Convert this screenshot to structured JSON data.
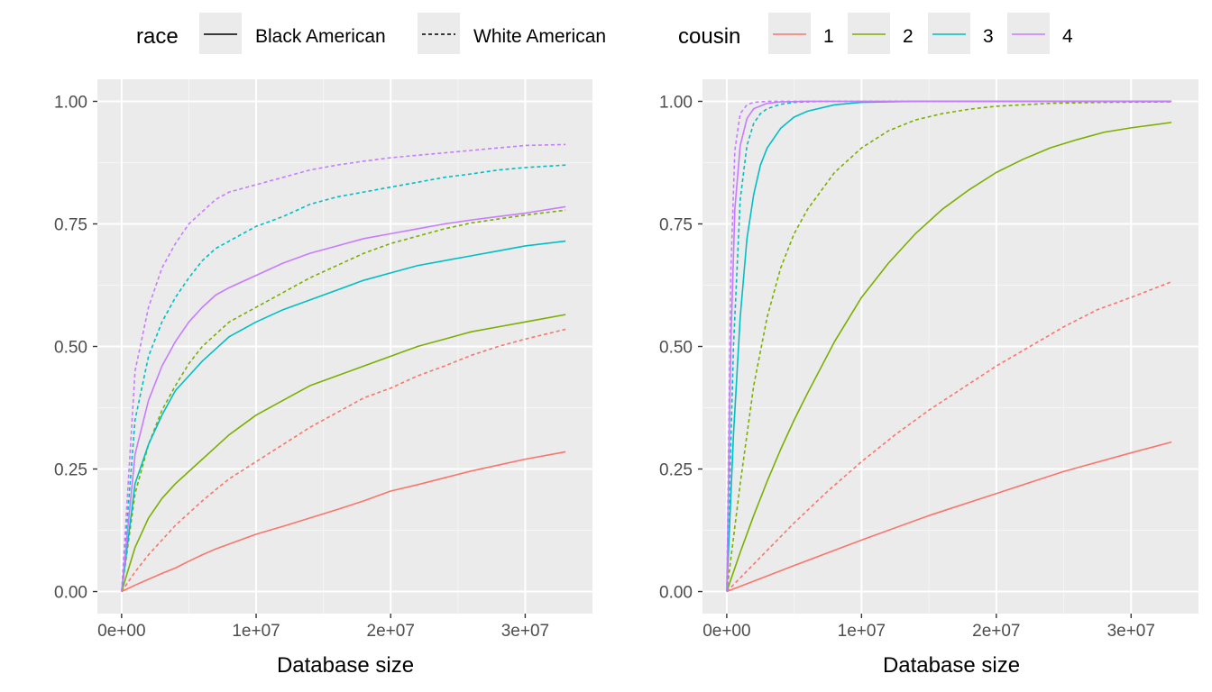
{
  "legend": {
    "race": {
      "title": "race",
      "entries": [
        {
          "label": "Black American",
          "linetype": "solid"
        },
        {
          "label": "White American",
          "linetype": "dashed"
        }
      ]
    },
    "cousin": {
      "title": "cousin",
      "entries": [
        {
          "label": "1",
          "color": "#F8766D"
        },
        {
          "label": "2",
          "color": "#7CAE00"
        },
        {
          "label": "3",
          "color": "#00BFC4"
        },
        {
          "label": "4",
          "color": "#C77CFF"
        }
      ]
    }
  },
  "chart_data": [
    {
      "type": "line",
      "panel": "left",
      "title": "",
      "xlabel": "Database size",
      "ylabel": "",
      "xlim": [
        -1800000,
        35000000
      ],
      "ylim": [
        -0.045,
        1.045
      ],
      "xticks": [
        0,
        10000000,
        20000000,
        30000000
      ],
      "xtick_labels": [
        "0e+00",
        "1e+07",
        "2e+07",
        "3e+07"
      ],
      "yticks": [
        0,
        0.25,
        0.5,
        0.75,
        1.0
      ],
      "ytick_labels": [
        "0.00",
        "0.25",
        "0.50",
        "0.75",
        "1.00"
      ],
      "x": [
        0,
        1000000,
        2000000,
        3000000,
        4000000,
        5000000,
        6000000,
        7000000,
        8000000,
        10000000,
        12000000,
        14000000,
        16000000,
        18000000,
        20000000,
        22000000,
        24000000,
        26000000,
        28000000,
        30000000,
        33000000
      ],
      "series": [
        {
          "name": "cousin 1 - Black American",
          "cousin": "1",
          "race": "Black American",
          "color": "#F8766D",
          "dash": "solid",
          "values": [
            0,
            0.013,
            0.025,
            0.037,
            0.048,
            0.062,
            0.075,
            0.087,
            0.097,
            0.117,
            0.133,
            0.15,
            0.167,
            0.185,
            0.205,
            0.218,
            0.232,
            0.246,
            0.258,
            0.27,
            0.285
          ]
        },
        {
          "name": "cousin 1 - White American",
          "cousin": "1",
          "race": "White American",
          "color": "#F8766D",
          "dash": "dashed",
          "values": [
            0,
            0.04,
            0.075,
            0.105,
            0.135,
            0.16,
            0.185,
            0.208,
            0.23,
            0.265,
            0.3,
            0.335,
            0.365,
            0.395,
            0.415,
            0.44,
            0.46,
            0.482,
            0.5,
            0.515,
            0.535
          ]
        },
        {
          "name": "cousin 2 - Black American",
          "cousin": "2",
          "race": "Black American",
          "color": "#7CAE00",
          "dash": "solid",
          "values": [
            0,
            0.09,
            0.15,
            0.19,
            0.22,
            0.245,
            0.27,
            0.295,
            0.32,
            0.36,
            0.39,
            0.42,
            0.44,
            0.46,
            0.48,
            0.5,
            0.515,
            0.53,
            0.54,
            0.55,
            0.565
          ]
        },
        {
          "name": "cousin 2 - White American",
          "cousin": "2",
          "race": "White American",
          "color": "#7CAE00",
          "dash": "dashed",
          "values": [
            0,
            0.2,
            0.3,
            0.37,
            0.42,
            0.465,
            0.5,
            0.525,
            0.55,
            0.58,
            0.61,
            0.64,
            0.665,
            0.69,
            0.71,
            0.725,
            0.74,
            0.752,
            0.76,
            0.768,
            0.778
          ]
        },
        {
          "name": "cousin 3 - Black American",
          "cousin": "3",
          "race": "Black American",
          "color": "#00BFC4",
          "dash": "solid",
          "values": [
            0,
            0.22,
            0.3,
            0.36,
            0.41,
            0.44,
            0.47,
            0.495,
            0.52,
            0.55,
            0.575,
            0.595,
            0.615,
            0.635,
            0.65,
            0.665,
            0.675,
            0.685,
            0.695,
            0.705,
            0.715
          ]
        },
        {
          "name": "cousin 3 - White American",
          "cousin": "3",
          "race": "White American",
          "color": "#00BFC4",
          "dash": "dashed",
          "values": [
            0,
            0.35,
            0.48,
            0.55,
            0.6,
            0.64,
            0.675,
            0.7,
            0.715,
            0.745,
            0.765,
            0.79,
            0.805,
            0.815,
            0.825,
            0.835,
            0.845,
            0.852,
            0.86,
            0.865,
            0.87
          ]
        },
        {
          "name": "cousin 4 - Black American",
          "cousin": "4",
          "race": "Black American",
          "color": "#C77CFF",
          "dash": "solid",
          "values": [
            0,
            0.28,
            0.39,
            0.46,
            0.51,
            0.55,
            0.58,
            0.605,
            0.62,
            0.645,
            0.67,
            0.69,
            0.705,
            0.72,
            0.73,
            0.74,
            0.75,
            0.758,
            0.765,
            0.772,
            0.785
          ]
        },
        {
          "name": "cousin 4 - White American",
          "cousin": "4",
          "race": "White American",
          "color": "#C77CFF",
          "dash": "dashed",
          "values": [
            0,
            0.45,
            0.58,
            0.66,
            0.71,
            0.75,
            0.775,
            0.8,
            0.815,
            0.83,
            0.845,
            0.86,
            0.87,
            0.878,
            0.885,
            0.89,
            0.895,
            0.9,
            0.905,
            0.91,
            0.912
          ]
        }
      ]
    },
    {
      "type": "line",
      "panel": "right",
      "title": "",
      "xlabel": "Database size",
      "ylabel": "",
      "xlim": [
        -1800000,
        35000000
      ],
      "ylim": [
        -0.045,
        1.045
      ],
      "xticks": [
        0,
        10000000,
        20000000,
        30000000
      ],
      "xtick_labels": [
        "0e+00",
        "1e+07",
        "2e+07",
        "3e+07"
      ],
      "yticks": [
        0,
        0.25,
        0.5,
        0.75,
        1.0
      ],
      "ytick_labels": [
        "0.00",
        "0.25",
        "0.50",
        "0.75",
        "1.00"
      ],
      "series": [
        {
          "name": "cousin 1 - Black American",
          "cousin": "1",
          "race": "Black American",
          "color": "#F8766D",
          "dash": "solid",
          "x": [
            0,
            5000000,
            10000000,
            15000000,
            20000000,
            25000000,
            30000000,
            33000000
          ],
          "values": [
            0,
            0.053,
            0.105,
            0.155,
            0.2,
            0.245,
            0.283,
            0.305
          ]
        },
        {
          "name": "cousin 1 - White American",
          "cousin": "1",
          "race": "White American",
          "color": "#F8766D",
          "dash": "dashed",
          "x": [
            0,
            2500000,
            5000000,
            7500000,
            10000000,
            12500000,
            15000000,
            17500000,
            20000000,
            22500000,
            25000000,
            27500000,
            30000000,
            33000000
          ],
          "values": [
            0,
            0.07,
            0.14,
            0.205,
            0.265,
            0.32,
            0.37,
            0.415,
            0.46,
            0.5,
            0.54,
            0.575,
            0.6,
            0.632
          ]
        },
        {
          "name": "cousin 2 - Black American",
          "cousin": "2",
          "race": "Black American",
          "color": "#7CAE00",
          "dash": "solid",
          "x": [
            0,
            1000000,
            2000000,
            3000000,
            4000000,
            5000000,
            6000000,
            8000000,
            10000000,
            12000000,
            14000000,
            16000000,
            18000000,
            20000000,
            22000000,
            24000000,
            26000000,
            28000000,
            30000000,
            33000000
          ],
          "values": [
            0,
            0.08,
            0.155,
            0.225,
            0.29,
            0.35,
            0.405,
            0.51,
            0.6,
            0.67,
            0.73,
            0.78,
            0.82,
            0.855,
            0.882,
            0.905,
            0.922,
            0.937,
            0.946,
            0.957
          ]
        },
        {
          "name": "cousin 2 - White American",
          "cousin": "2",
          "race": "White American",
          "color": "#7CAE00",
          "dash": "dashed",
          "x": [
            0,
            1000000,
            2000000,
            3000000,
            4000000,
            5000000,
            6000000,
            8000000,
            10000000,
            12000000,
            14000000,
            16000000,
            18000000,
            20000000,
            24000000,
            28000000,
            33000000
          ],
          "values": [
            0,
            0.22,
            0.42,
            0.56,
            0.66,
            0.73,
            0.78,
            0.855,
            0.905,
            0.94,
            0.962,
            0.975,
            0.984,
            0.99,
            0.996,
            0.998,
            0.999
          ]
        },
        {
          "name": "cousin 3 - Black American",
          "cousin": "3",
          "race": "Black American",
          "color": "#00BFC4",
          "dash": "solid",
          "x": [
            0,
            500000,
            1000000,
            1500000,
            2000000,
            2500000,
            3000000,
            4000000,
            5000000,
            6000000,
            8000000,
            10000000,
            14000000,
            20000000,
            33000000
          ],
          "values": [
            0,
            0.32,
            0.56,
            0.72,
            0.81,
            0.87,
            0.905,
            0.945,
            0.968,
            0.98,
            0.993,
            0.998,
            1.0,
            1.0,
            1.0
          ]
        },
        {
          "name": "cousin 3 - White American",
          "cousin": "3",
          "race": "White American",
          "color": "#00BFC4",
          "dash": "dashed",
          "x": [
            0,
            500000,
            1000000,
            1500000,
            2000000,
            2500000,
            3000000,
            4000000,
            5000000,
            7000000,
            10000000,
            33000000
          ],
          "values": [
            0,
            0.5,
            0.8,
            0.91,
            0.955,
            0.975,
            0.985,
            0.994,
            0.998,
            1.0,
            1.0,
            1.0
          ]
        },
        {
          "name": "cousin 4 - Black American",
          "cousin": "4",
          "race": "Black American",
          "color": "#C77CFF",
          "dash": "solid",
          "x": [
            0,
            300000,
            600000,
            1000000,
            1500000,
            2000000,
            3000000,
            4000000,
            6000000,
            33000000
          ],
          "values": [
            0,
            0.5,
            0.78,
            0.91,
            0.965,
            0.985,
            0.996,
            0.999,
            1.0,
            1.0
          ]
        },
        {
          "name": "cousin 4 - White American",
          "cousin": "4",
          "race": "White American",
          "color": "#C77CFF",
          "dash": "dashed",
          "x": [
            0,
            300000,
            600000,
            1000000,
            1500000,
            2000000,
            3000000,
            4000000,
            33000000
          ],
          "values": [
            0,
            0.65,
            0.9,
            0.975,
            0.993,
            0.998,
            1.0,
            1.0,
            1.0
          ]
        }
      ]
    }
  ]
}
